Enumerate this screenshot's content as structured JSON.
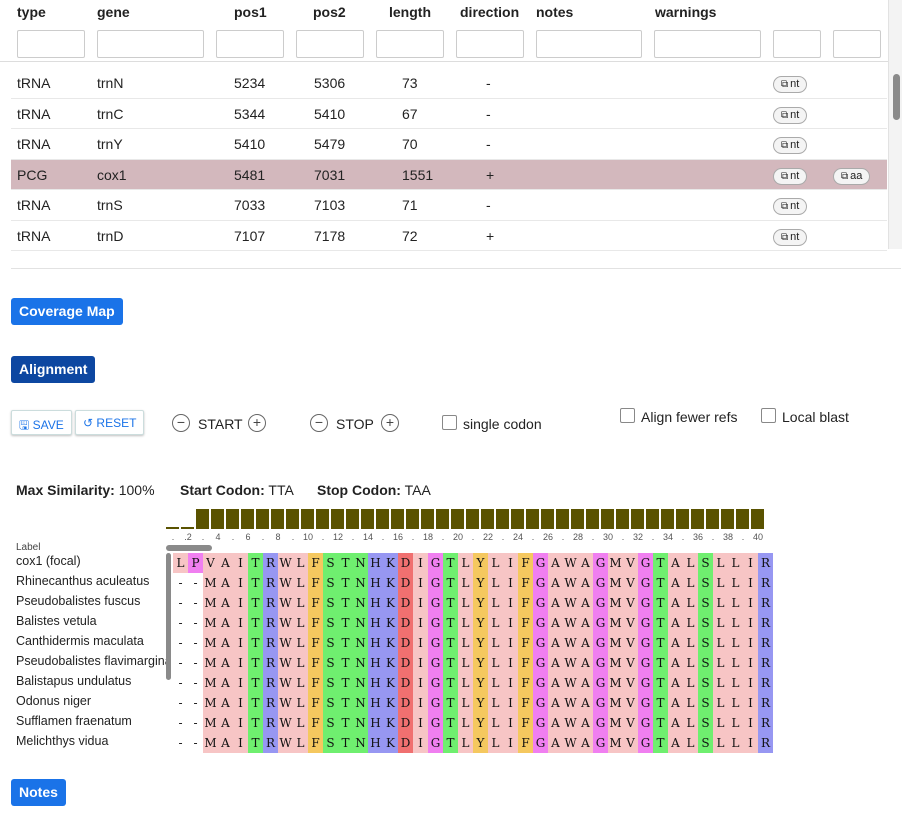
{
  "table": {
    "headers": [
      "type",
      "gene",
      "pos1",
      "pos2",
      "length",
      "direction",
      "notes",
      "warnings"
    ],
    "rows": [
      {
        "type": "tRNA",
        "gene": "trnN",
        "pos1": "5234",
        "pos2": "5306",
        "length": "73",
        "direction": "-",
        "buttons": [
          "nt"
        ],
        "selected": false
      },
      {
        "type": "tRNA",
        "gene": "trnC",
        "pos1": "5344",
        "pos2": "5410",
        "length": "67",
        "direction": "-",
        "buttons": [
          "nt"
        ],
        "selected": false
      },
      {
        "type": "tRNA",
        "gene": "trnY",
        "pos1": "5410",
        "pos2": "5479",
        "length": "70",
        "direction": "-",
        "buttons": [
          "nt"
        ],
        "selected": false
      },
      {
        "type": "PCG",
        "gene": "cox1",
        "pos1": "5481",
        "pos2": "7031",
        "length": "1551",
        "direction": "+",
        "buttons": [
          "nt",
          "aa"
        ],
        "selected": true
      },
      {
        "type": "tRNA",
        "gene": "trnS",
        "pos1": "7033",
        "pos2": "7103",
        "length": "71",
        "direction": "-",
        "buttons": [
          "nt"
        ],
        "selected": false
      },
      {
        "type": "tRNA",
        "gene": "trnD",
        "pos1": "7107",
        "pos2": "7178",
        "length": "72",
        "direction": "+",
        "buttons": [
          "nt"
        ],
        "selected": false
      }
    ],
    "copy_icon": "copy-icon"
  },
  "buttons": {
    "coverage_map": "Coverage Map",
    "alignment": "Alignment",
    "save": "SAVE",
    "reset": "RESET",
    "start": "START",
    "stop": "STOP",
    "notes": "Notes",
    "minus": "−",
    "plus": "+"
  },
  "options": {
    "single_codon": "single codon",
    "align_fewer_refs": "Align fewer refs",
    "local_blast": "Local blast"
  },
  "stats": {
    "max_similarity_label": "Max Similarity:",
    "max_similarity_value": "100%",
    "start_codon_label": "Start Codon:",
    "start_codon_value": "TTA",
    "stop_codon_label": "Stop Codon:",
    "stop_codon_value": "TAA"
  },
  "alignment": {
    "label_header": "Label",
    "ticks": [
      ".",
      ".2",
      ".",
      "4",
      ".",
      "6",
      ".",
      "8",
      ".",
      "10",
      ".",
      "12",
      ".",
      "14",
      ".",
      "16",
      ".",
      "18",
      ".",
      "20",
      ".",
      "22",
      ".",
      "24",
      ".",
      "26",
      ".",
      "28",
      ".",
      "30",
      ".",
      "32",
      ".",
      "34",
      ".",
      "36",
      ".",
      "38",
      ".",
      "40"
    ],
    "similarity": [
      0.0,
      0.0,
      1,
      1,
      1,
      1,
      1,
      1,
      1,
      1,
      1,
      1,
      1,
      1,
      1,
      1,
      1,
      1,
      1,
      1,
      1,
      1,
      1,
      1,
      1,
      1,
      1,
      1,
      1,
      1,
      1,
      1,
      1,
      1,
      1,
      1,
      1,
      1,
      1,
      1
    ],
    "sequences": [
      {
        "label": "cox1 (focal)",
        "seq": "LPVAITRWLFSTNHKDIGTLYLIFGAWAGMVGTALSLLIR"
      },
      {
        "label": "Rhinecanthus aculeatus",
        "seq": "--MAITRWLFSTNHKDIGTLYLIFGAWAGMVGTALSLLIR"
      },
      {
        "label": "Pseudobalistes fuscus",
        "seq": "--MAITRWLFSTNHKDIGTLYLIFGAWAGMVGTALSLLIR"
      },
      {
        "label": "Balistes vetula",
        "seq": "--MAITRWLFSTNHKDIGTLYLIFGAWAGMVGTALSLLIR"
      },
      {
        "label": "Canthidermis maculata",
        "seq": "--MAITRWLFSTNHKDIGTLYLIFGAWAGMVGTALSLLIR"
      },
      {
        "label": "Pseudobalistes flavimarginatus",
        "seq": "--MAITRWLFSTNHKDIGTLYLIFGAWAGMVGTALSLLIR"
      },
      {
        "label": "Balistapus undulatus",
        "seq": "--MAITRWLFSTNHKDIGTLYLIFGAWAGMVGTALSLLIR"
      },
      {
        "label": "Odonus niger",
        "seq": "--MAITRWLFSTNHKDIGTLYLIFGAWAGMVGTALSLLIR"
      },
      {
        "label": "Sufflamen fraenatum",
        "seq": "--MAITRWLFSTNHKDIGTLYLIFGAWAGMVGTALSLLIR"
      },
      {
        "label": "Melichthys vidua",
        "seq": "--MAITRWLFSTNHKDIGTLYLIFGAWAGMVGTALSLLIR"
      }
    ],
    "colors": {
      "L": "#f7c5c5",
      "P": "#f07ff0",
      "V": "#f7c5c5",
      "A": "#f7c5c5",
      "I": "#f7c5c5",
      "M": "#f7c5c5",
      "T": "#6fef6f",
      "R": "#9797f2",
      "W": "#f7c5c5",
      "F": "#f5c85f",
      "S": "#6fef6f",
      "N": "#6fef6f",
      "H": "#9797f2",
      "K": "#9797f2",
      "D": "#f07070",
      "G": "#f07ff0",
      "Y": "#f5c85f",
      "-": "#ffffff"
    },
    "bar_color": "#5a5300"
  },
  "colors": {
    "blue_button": "#1a73e8",
    "dark_blue_button": "#0d47a1",
    "selected_row": "#d3b8bd"
  }
}
